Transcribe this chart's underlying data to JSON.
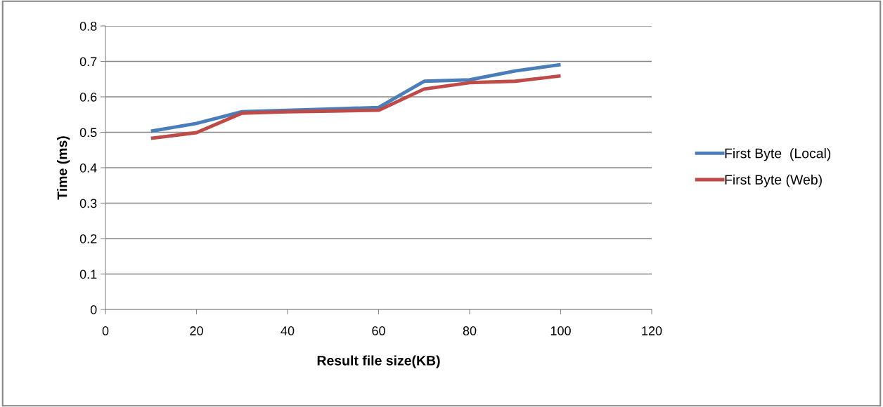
{
  "chart_data": {
    "type": "line",
    "xlabel": "Result file size(KB)",
    "ylabel": "Time (ms)",
    "x": [
      10,
      20,
      30,
      40,
      50,
      60,
      70,
      80,
      90,
      100
    ],
    "series": [
      {
        "name": "First Byte  (Local)",
        "color": "#4a7ebb",
        "values": [
          0.503,
          0.525,
          0.558,
          0.562,
          0.566,
          0.57,
          0.644,
          0.648,
          0.673,
          0.691
        ]
      },
      {
        "name": "First Byte (Web)",
        "color": "#be4b48",
        "values": [
          0.483,
          0.499,
          0.554,
          0.558,
          0.56,
          0.562,
          0.622,
          0.64,
          0.644,
          0.659
        ]
      }
    ],
    "xlim": [
      0,
      120
    ],
    "xticks": [
      0,
      20,
      40,
      60,
      80,
      100,
      120
    ],
    "ylim": [
      0,
      0.8
    ],
    "yticks": [
      0,
      0.1,
      0.2,
      0.3,
      0.4,
      0.5,
      0.6,
      0.7,
      0.8
    ],
    "grid": "y",
    "legend": "right",
    "marker": "none",
    "line_style": "solid"
  }
}
